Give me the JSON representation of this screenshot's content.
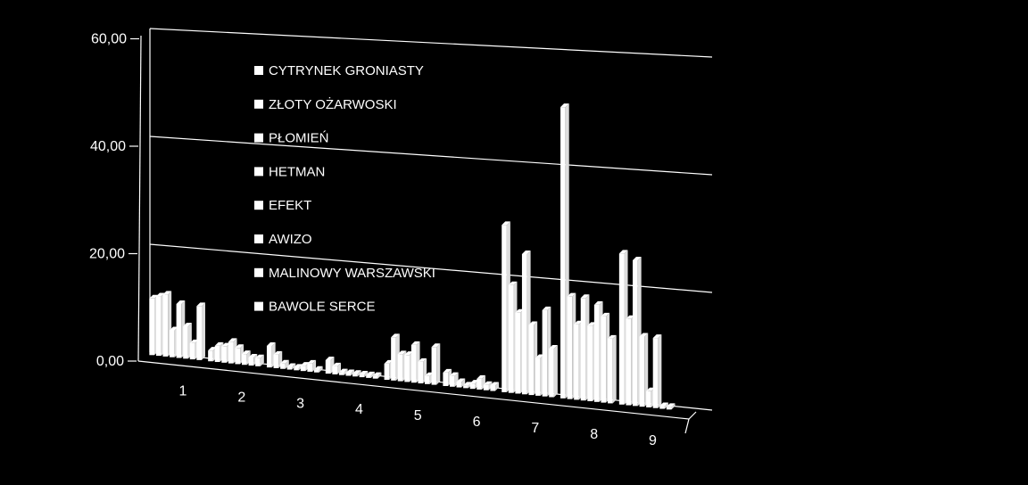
{
  "colors": {
    "background": "#000000",
    "bars": "#ffffff",
    "lines": "#ffffff"
  },
  "chart_data": {
    "type": "bar",
    "is_3d": true,
    "legend_placement": "inside-top-left",
    "grid": true,
    "ylim": [
      0,
      60
    ],
    "y_ticks": [
      "0,00",
      "20,00",
      "40,00",
      "60,00"
    ],
    "categories": [
      "1",
      "2",
      "3",
      "4",
      "5",
      "6",
      "7",
      "8",
      "9"
    ],
    "series": [
      {
        "name": "CYTRYNEK GRONIASTY",
        "values": [
          10.5,
          2.0,
          4.0,
          2.5,
          3.0,
          2.5,
          31.0,
          54.0,
          28.0
        ]
      },
      {
        "name": "ZŁOTY OŻARWOSKI",
        "values": [
          11.0,
          3.0,
          2.5,
          1.5,
          8.0,
          2.0,
          20.0,
          19.0,
          16.0
        ]
      },
      {
        "name": "PŁOMIEŃ",
        "values": [
          11.5,
          3.0,
          1.0,
          0.5,
          5.0,
          1.0,
          15.0,
          14.0,
          27.0
        ]
      },
      {
        "name": "HETMAN",
        "values": [
          5.0,
          4.0,
          0.5,
          0.5,
          5.0,
          0.5,
          26.0,
          19.0,
          13.0
        ]
      },
      {
        "name": "EFEKT",
        "values": [
          10.0,
          3.0,
          0.5,
          0.5,
          7.0,
          1.0,
          13.0,
          14.0,
          3.0
        ]
      },
      {
        "name": "AWIZO",
        "values": [
          6.0,
          2.0,
          1.0,
          0.5,
          4.0,
          2.0,
          7.0,
          18.0,
          13.0
        ]
      },
      {
        "name": "MALINOWY WARSZAWSKI",
        "values": [
          3.0,
          1.5,
          1.5,
          0.5,
          1.5,
          1.0,
          16.0,
          16.0,
          0.5
        ]
      },
      {
        "name": "BAWOLE SERCE",
        "values": [
          10.0,
          1.5,
          0.5,
          0.5,
          7.0,
          1.0,
          9.0,
          12.0,
          0.5
        ]
      }
    ]
  }
}
